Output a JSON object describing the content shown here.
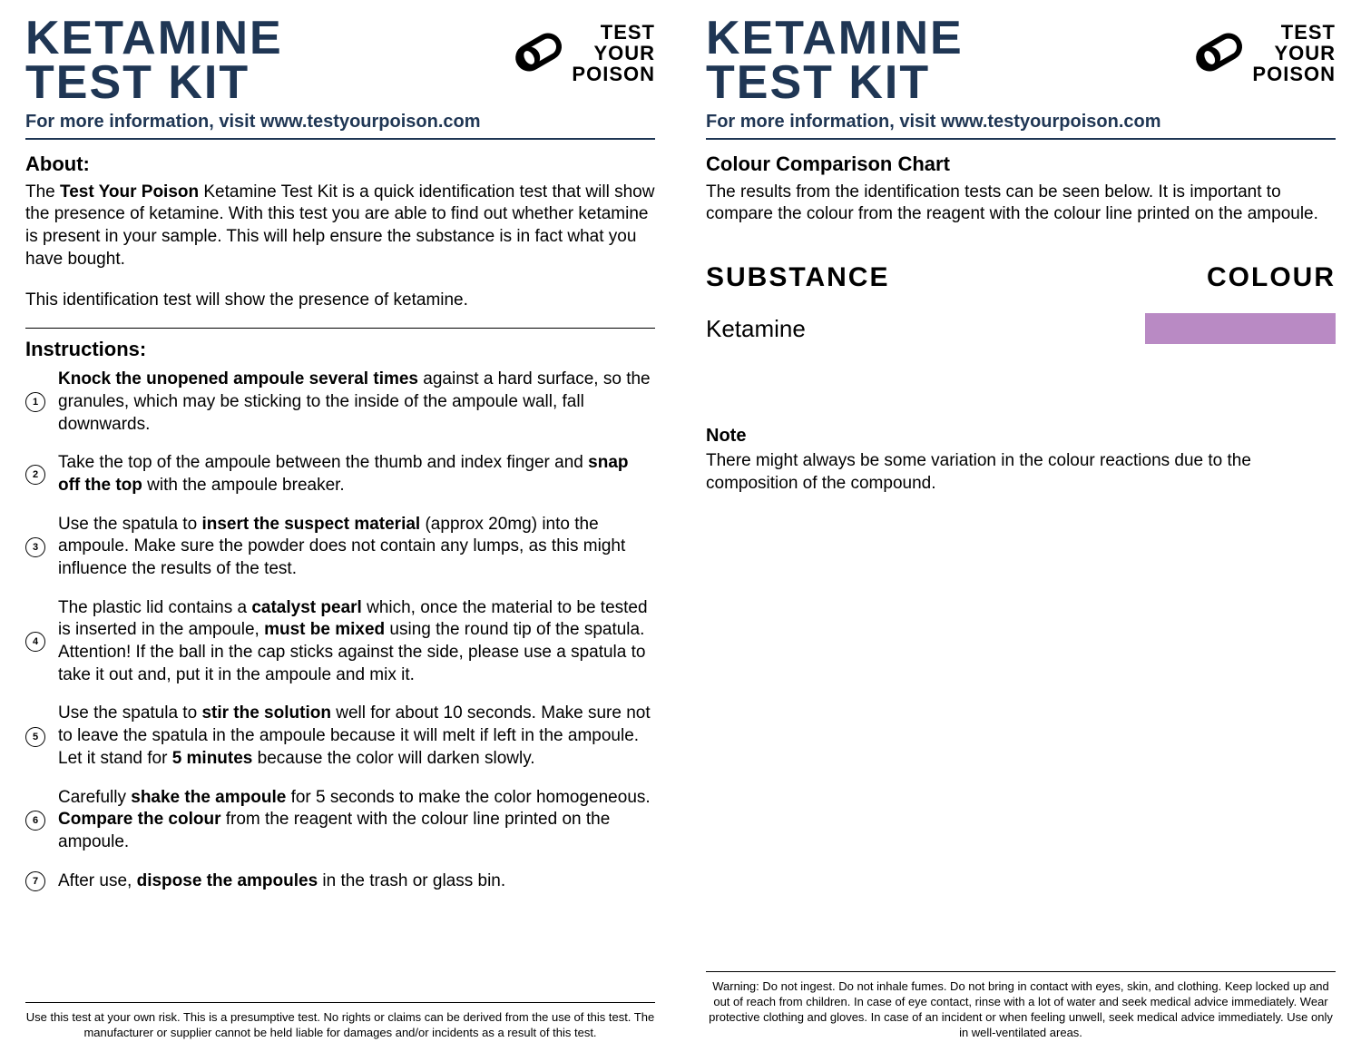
{
  "brand": {
    "title_color": "#1f3654",
    "black": "#000000",
    "logo_line1": "TEST",
    "logo_line2": "YOUR",
    "logo_line3": "POISON"
  },
  "product_title_line1": "KETAMINE",
  "product_title_line2": "TEST KIT",
  "more_info": "For more information, visit www.testyourpoison.com",
  "left": {
    "about_heading": "About:",
    "about_body_prefix": "The ",
    "about_body_brand": "Test Your Poison",
    "about_body_rest": " Ketamine Test Kit is a quick identification test that will show the presence of ketamine. With this test you are able to find out whether ketamine is present in your sample. This will help ensure the substance is in fact what you have bought.",
    "about_line2": "This identification test will show the presence of ketamine.",
    "instructions_heading": "Instructions:",
    "steps": [
      {
        "pre": "",
        "b1": "Knock the unopened ampoule several times",
        "mid": " against a hard surface, so the granules, which may be sticking to the inside of the ampoule wall, fall downwards.",
        "b2": "",
        "post": ""
      },
      {
        "pre": "Take the top of the ampoule between the thumb and index finger and ",
        "b1": "snap off the top",
        "mid": " with the ampoule breaker.",
        "b2": "",
        "post": ""
      },
      {
        "pre": "Use the spatula to ",
        "b1": "insert the suspect material",
        "mid": " (approx 20mg) into the ampoule. Make sure the powder does not contain any lumps, as this might influence the results of the test.",
        "b2": "",
        "post": ""
      },
      {
        "pre": "The plastic lid contains a ",
        "b1": "catalyst pearl",
        "mid": " which, once the material to be tested is inserted in the ampoule, ",
        "b2": "must be mixed",
        "post": " using the round tip of the spatula. Attention! If the ball in the cap sticks against the side, please use a spatula to take it out and, put it in the ampoule and mix it."
      },
      {
        "pre": "Use the spatula to ",
        "b1": "stir the solution",
        "mid": " well for about 10 seconds. Make sure not to leave the spatula in the ampoule because it will melt if left in the ampoule. Let it stand for ",
        "b2": "5 minutes",
        "post": " because the color will darken slowly."
      },
      {
        "pre": "Carefully ",
        "b1": "shake the ampoule",
        "mid": " for 5 seconds to make the color homogeneous. ",
        "b2": "Compare the colour",
        "post": " from the reagent with the colour line printed on the ampoule."
      },
      {
        "pre": "After use, ",
        "b1": "dispose the ampoules",
        "mid": " in the trash or glass bin.",
        "b2": "",
        "post": ""
      }
    ],
    "disclaimer": "Use this test at your own risk. This is a presumptive test. No rights or claims can be derived from the use of this test. The manufacturer or supplier cannot be held liable for damages and/or incidents as a result of this test."
  },
  "right": {
    "chart_heading": "Colour Comparison Chart",
    "chart_intro": "The results from the identification tests can be seen below. It is important to compare the colour from the reagent with the colour line printed on the ampoule.",
    "col_substance": "SUBSTANCE",
    "col_colour": "COLOUR",
    "substance": "Ketamine",
    "swatch_color": "#b98ac4",
    "note_heading": "Note",
    "note_body": "There might always be some variation in the colour reactions due to the composition of the compound.",
    "warning": "Warning: Do not ingest. Do not inhale fumes. Do not bring in contact with eyes, skin, and clothing. Keep locked up and out of reach from children. In case of eye contact, rinse with a lot of water and seek medical advice immediately. Wear protective clothing and gloves. In case of an incident or when feeling unwell, seek medical advice immediately. Use only in well-ventilated areas."
  }
}
